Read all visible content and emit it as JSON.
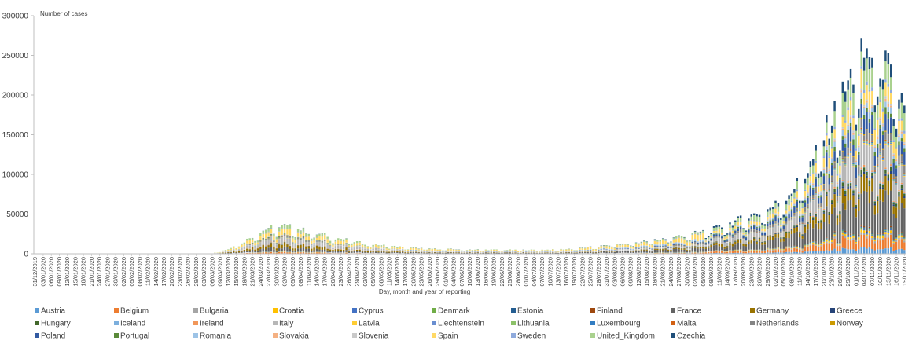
{
  "chart_data": {
    "type": "bar",
    "stacked": true,
    "title": "",
    "ylabel": "Number of cases",
    "xlabel": "Day, month and year of reporting",
    "ylim": [
      0,
      300000
    ],
    "yticks": [
      0,
      50000,
      100000,
      150000,
      200000,
      250000,
      300000
    ],
    "x_start": "2019-12-31",
    "x_end": "2020-11-19",
    "tick_labels": [
      "31/12/2019",
      "03/01/2020",
      "06/01/2020",
      "09/01/2020",
      "12/01/2020",
      "15/01/2020",
      "18/01/2020",
      "21/01/2020",
      "24/01/2020",
      "27/01/2020",
      "30/01/2020",
      "02/02/2020",
      "05/02/2020",
      "08/02/2020",
      "11/02/2020",
      "14/02/2020",
      "17/02/2020",
      "20/02/2020",
      "23/02/2020",
      "26/02/2020",
      "29/02/2020",
      "03/03/2020",
      "06/03/2020",
      "09/03/2020",
      "12/03/2020",
      "15/03/2020",
      "18/03/2020",
      "21/03/2020",
      "24/03/2020",
      "27/03/2020",
      "30/03/2020",
      "02/04/2020",
      "05/04/2020",
      "08/04/2020",
      "11/04/2020",
      "14/04/2020",
      "17/04/2020",
      "20/04/2020",
      "23/04/2020",
      "26/04/2020",
      "29/04/2020",
      "02/05/2020",
      "05/05/2020",
      "08/05/2020",
      "11/05/2020",
      "14/05/2020",
      "17/05/2020",
      "20/05/2020",
      "23/05/2020",
      "26/05/2020",
      "29/05/2020",
      "01/06/2020",
      "04/06/2020",
      "07/06/2020",
      "10/06/2020",
      "13/06/2020",
      "16/06/2020",
      "19/06/2020",
      "22/06/2020",
      "25/06/2020",
      "28/06/2020",
      "01/07/2020",
      "04/07/2020",
      "07/07/2020",
      "10/07/2020",
      "13/07/2020",
      "16/07/2020",
      "19/07/2020",
      "22/07/2020",
      "25/07/2020",
      "28/07/2020",
      "31/07/2020",
      "03/08/2020",
      "06/08/2020",
      "09/08/2020",
      "12/08/2020",
      "15/08/2020",
      "18/08/2020",
      "21/08/2020",
      "24/08/2020",
      "27/08/2020",
      "30/08/2020",
      "02/09/2020",
      "05/09/2020",
      "08/09/2020",
      "11/09/2020",
      "14/09/2020",
      "17/09/2020",
      "20/09/2020",
      "23/09/2020",
      "26/09/2020",
      "29/09/2020",
      "02/10/2020",
      "05/10/2020",
      "08/10/2020",
      "11/10/2020",
      "14/10/2020",
      "17/10/2020",
      "20/10/2020",
      "23/10/2020",
      "26/10/2020",
      "29/10/2020",
      "01/11/2020",
      "04/11/2020",
      "07/11/2020",
      "10/11/2020",
      "13/11/2020",
      "16/11/2020",
      "19/11/2020"
    ],
    "totals_by_tick": [
      0,
      0,
      0,
      0,
      0,
      0,
      0,
      0,
      0,
      0,
      0,
      0,
      0,
      0,
      0,
      0,
      0,
      0,
      0,
      0,
      0,
      200,
      700,
      3000,
      6500,
      10500,
      16000,
      22000,
      27000,
      33000,
      32000,
      35000,
      33000,
      31000,
      27000,
      25000,
      24000,
      21000,
      19000,
      17000,
      15000,
      13000,
      12000,
      11000,
      10000,
      9000,
      8000,
      7500,
      7000,
      6500,
      6200,
      6000,
      5800,
      5600,
      5400,
      5300,
      5200,
      5200,
      5100,
      5000,
      4900,
      4900,
      5000,
      5100,
      5300,
      5600,
      6000,
      6600,
      7400,
      8300,
      9300,
      10500,
      11500,
      12500,
      13500,
      14500,
      16000,
      17500,
      19000,
      20500,
      22000,
      23500,
      26000,
      28000,
      30000,
      33000,
      37000,
      41000,
      45000,
      48000,
      52000,
      56000,
      62000,
      70000,
      80000,
      92000,
      105000,
      125000,
      150000,
      170000,
      190000,
      215000,
      235000,
      250000,
      255000,
      245000,
      230000,
      205000,
      195000
    ],
    "series": [
      "Austria",
      "Belgium",
      "Bulgaria",
      "Croatia",
      "Cyprus",
      "Denmark",
      "Estonia",
      "Finland",
      "France",
      "Germany",
      "Greece",
      "Hungary",
      "Iceland",
      "Ireland",
      "Italy",
      "Latvia",
      "Liechtenstein",
      "Lithuania",
      "Luxembourg",
      "Malta",
      "Netherlands",
      "Norway",
      "Poland",
      "Portugal",
      "Romania",
      "Slovakia",
      "Slovenia",
      "Spain",
      "Sweden",
      "United_Kingdom",
      "Czechia"
    ],
    "series_colors": [
      "#5B9BD5",
      "#ED7D31",
      "#A5A5A5",
      "#FFC000",
      "#4472C4",
      "#70AD47",
      "#255E91",
      "#9E480E",
      "#636363",
      "#997300",
      "#264478",
      "#43682B",
      "#7CAFDD",
      "#F1975A",
      "#B7B7B7",
      "#FFCD33",
      "#698ED0",
      "#8CC168",
      "#327DC2",
      "#D26012",
      "#848484",
      "#CC9A00",
      "#335AA1",
      "#5A8A39",
      "#9DC3E6",
      "#F4B183",
      "#C9C9C9",
      "#FFD966",
      "#8FAADC",
      "#A9D18E",
      "#1F4E79"
    ],
    "legend_position": "bottom"
  }
}
